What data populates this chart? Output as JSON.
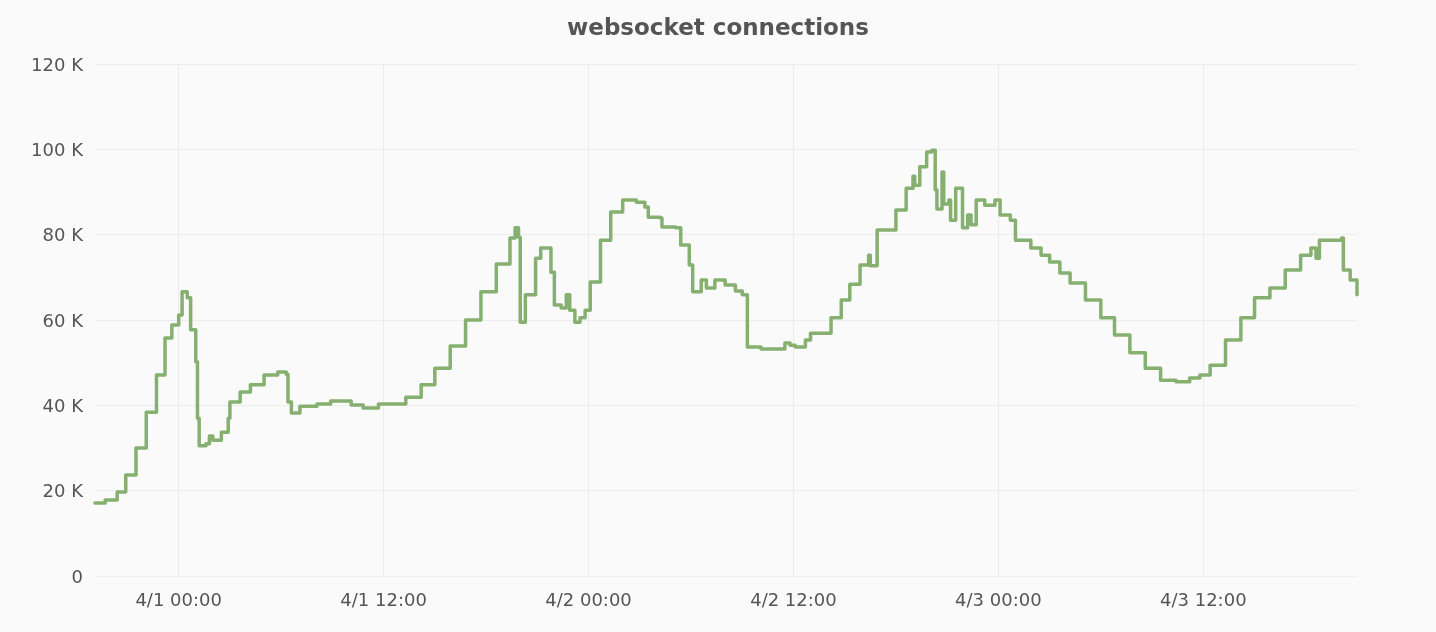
{
  "chart_data": {
    "type": "step",
    "title": "websocket connections",
    "x": [
      "--03-31T19:06",
      "--03-31T19:42",
      "--03-31T20:06",
      "--03-31T20:24",
      "--03-31T20:54",
      "--03-31T21:30",
      "--03-31T22:06",
      "--03-31T22:42",
      "--03-31T23:12",
      "--03-31T23:36",
      "--04-01T00:00",
      "--04-01T00:12",
      "--04-01T00:30",
      "--04-01T00:42",
      "--04-01T01:00",
      "--04-01T01:06",
      "--04-01T01:12",
      "--04-01T01:36",
      "--04-01T01:48",
      "--04-01T02:00",
      "--04-01T02:30",
      "--04-01T02:54",
      "--04-01T03:00",
      "--04-01T03:36",
      "--04-01T04:12",
      "--04-01T05:00",
      "--04-01T05:48",
      "--04-01T06:18",
      "--04-01T06:24",
      "--04-01T06:36",
      "--04-01T07:06",
      "--04-01T08:06",
      "--04-01T08:54",
      "--04-01T10:06",
      "--04-01T10:48",
      "--04-01T11:42",
      "--04-01T12:24",
      "--04-01T13:18",
      "--04-01T14:12",
      "--04-01T15:00",
      "--04-01T15:54",
      "--04-01T16:48",
      "--04-01T17:42",
      "--04-01T18:36",
      "--04-01T19:24",
      "--04-01T19:42",
      "--04-01T19:54",
      "--04-01T20:00",
      "--04-01T20:18",
      "--04-01T20:54",
      "--04-01T21:12",
      "--04-01T21:42",
      "--04-01T21:48",
      "--04-01T22:00",
      "--04-01T22:24",
      "--04-01T22:42",
      "--04-01T22:54",
      "--04-01T23:12",
      "--04-01T23:30",
      "--04-01T23:48",
      "--04-02T00:06",
      "--04-02T00:42",
      "--04-02T01:18",
      "--04-02T02:00",
      "--04-02T02:48",
      "--04-02T03:18",
      "--04-02T03:30",
      "--04-02T04:12",
      "--04-02T04:18",
      "--04-02T05:06",
      "--04-02T05:24",
      "--04-02T05:54",
      "--04-02T06:06",
      "--04-02T06:36",
      "--04-02T06:54",
      "--04-02T07:24",
      "--04-02T08:00",
      "--04-02T08:36",
      "--04-02T09:00",
      "--04-02T09:18",
      "--04-02T10:06",
      "--04-02T10:42",
      "--04-02T11:30",
      "--04-02T11:48",
      "--04-02T12:06",
      "--04-02T12:42",
      "--04-02T13:00",
      "--04-02T13:30",
      "--04-02T14:12",
      "--04-02T14:48",
      "--04-02T15:18",
      "--04-02T15:54",
      "--04-02T16:24",
      "--04-02T16:30",
      "--04-02T16:54",
      "--04-02T17:24",
      "--04-02T18:00",
      "--04-02T18:36",
      "--04-02T19:00",
      "--04-02T19:06",
      "--04-02T19:24",
      "--04-02T19:48",
      "--04-02T20:06",
      "--04-02T20:18",
      "--04-02T20:24",
      "--04-02T20:42",
      "--04-02T20:48",
      "--04-02T21:06",
      "--04-02T21:12",
      "--04-02T21:30",
      "--04-02T21:48",
      "--04-02T21:54",
      "--04-02T22:12",
      "--04-02T22:24",
      "--04-02T22:42",
      "--04-02T23:12",
      "--04-02T23:48",
      "--04-03T00:06",
      "--04-03T00:42",
      "--04-03T01:00",
      "--04-03T01:54",
      "--04-03T02:30",
      "--04-03T03:00",
      "--04-03T03:36",
      "--04-03T04:12",
      "--04-03T05:06",
      "--04-03T06:00",
      "--04-03T06:48",
      "--04-03T07:42",
      "--04-03T08:36",
      "--04-03T09:30",
      "--04-03T10:24",
      "--04-03T11:12",
      "--04-03T11:48",
      "--04-03T12:24",
      "--04-03T13:18",
      "--04-03T14:12",
      "--04-03T15:00",
      "--04-03T15:54",
      "--04-03T16:48",
      "--04-03T17:42",
      "--04-03T18:18",
      "--04-03T18:36",
      "--04-03T18:48",
      "--04-03T19:24",
      "--04-03T20:06",
      "--04-03T20:12",
      "--04-03T20:36",
      "--04-03T21:00"
    ],
    "series": [
      {
        "color": "#86b06f",
        "values": [
          17.1,
          17.8,
          17.8,
          19.7,
          23.7,
          30,
          38.4,
          47.1,
          55.8,
          58.8,
          61.2,
          66.6,
          65.2,
          57.7,
          50.2,
          37,
          30.5,
          31,
          32.8,
          31.8,
          33.7,
          37,
          40.8,
          43.1,
          44.8,
          47.1,
          47.8,
          47.3,
          40.8,
          38.2,
          39.8,
          40.3,
          41,
          40.1,
          39.4,
          40.3,
          40.3,
          41.9,
          44.8,
          48.7,
          53.9,
          60,
          66.6,
          73.1,
          79.2,
          81.6,
          79.4,
          59.5,
          65.9,
          74.5,
          76.9,
          76.9,
          71.2,
          63.5,
          62.8,
          65.9,
          62.3,
          59.5,
          60.5,
          62.3,
          68.9,
          78.7,
          85.3,
          88.1,
          87.6,
          86.5,
          84.1,
          83.9,
          81.8,
          81.6,
          77.6,
          72.9,
          66.6,
          69.4,
          67.5,
          69.4,
          68.2,
          66.8,
          65.9,
          53.7,
          53.2,
          53.2,
          54.6,
          54.1,
          53.7,
          55.3,
          56.9,
          56.9,
          60.5,
          64.7,
          68.4,
          72.9,
          75.2,
          72.7,
          81.1,
          81.1,
          85.8,
          90.9,
          93.7,
          91.6,
          95.9,
          99.4,
          99.8,
          90.5,
          86,
          94.7,
          87.2,
          88.1,
          83.4,
          90.9,
          90.9,
          81.6,
          84.6,
          82.3,
          88.1,
          86.9,
          88.1,
          84.6,
          83.4,
          78.7,
          76.9,
          75.2,
          73.6,
          71,
          68.7,
          64.7,
          60.5,
          56.5,
          52.3,
          48.7,
          45.9,
          45.5,
          46.4,
          47.1,
          49.4,
          55.3,
          60.5,
          65.2,
          67.5,
          71.7,
          75.2,
          76.9,
          74.5,
          78.7,
          78.7,
          79.2,
          71.7,
          69.4,
          65.9
        ]
      }
    ],
    "xlim": [
      "--03-31T19:06",
      "--04-03T21:00"
    ],
    "xticks": [
      {
        "value": "--04-01T00:00",
        "label": "4/1 00:00"
      },
      {
        "value": "--04-01T12:00",
        "label": "4/1 12:00"
      },
      {
        "value": "--04-02T00:00",
        "label": "4/2 00:00"
      },
      {
        "value": "--04-02T12:00",
        "label": "4/2 12:00"
      },
      {
        "value": "--04-03T00:00",
        "label": "4/3 00:00"
      },
      {
        "value": "--04-03T12:00",
        "label": "4/3 12:00"
      }
    ],
    "ylim": [
      0,
      120
    ],
    "yticks": [
      0,
      {
        "value": 20,
        "label": "20 K"
      },
      {
        "value": 40,
        "label": "40 K"
      },
      {
        "value": 60,
        "label": "60 K"
      },
      {
        "value": 80,
        "label": "80 K"
      },
      {
        "value": 100,
        "label": "100 K"
      },
      {
        "value": 120,
        "label": "120 K"
      }
    ],
    "grid": true,
    "line_style": "solid",
    "marker": "none"
  }
}
